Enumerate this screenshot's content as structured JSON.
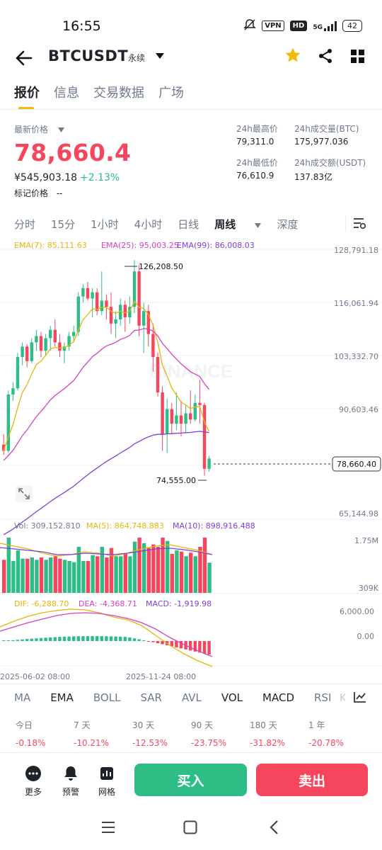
{
  "status": {
    "time": "16:55",
    "vpn": "VPN",
    "hd": "HD",
    "net": "5G",
    "battery": "42"
  },
  "header": {
    "pair": "BTCUSDT",
    "type": "永续"
  },
  "tabs": [
    "报价",
    "信息",
    "交易数据",
    "广场"
  ],
  "quote": {
    "latest_label": "最新价格",
    "price": "78,660.4",
    "cny": "¥545,903.18",
    "change": "+2.13%",
    "mark_label": "标记价格",
    "mark_value": "--",
    "high_label": "24h最高价",
    "high": "79,311.0",
    "low_label": "24h最低价",
    "low": "76,610.9",
    "vol_label": "24h成交量(BTC)",
    "vol": "175,977.036",
    "amt_label": "24h成交额(USDT)",
    "amt": "137.83亿"
  },
  "timeframes": [
    "分时",
    "15分",
    "1小时",
    "4小时",
    "日线",
    "周线",
    "深度"
  ],
  "ema": {
    "e7": "EMA(7): 85,111.63",
    "e25": "EMA(25): 95,003.25",
    "e99": "EMA(99): 86,008.03"
  },
  "axis": {
    "p1": "128,791.18",
    "p2": "116,061.94",
    "p3": "103,332.70",
    "p4": "90,603.46",
    "p5": "65,144.98",
    "current": "78,660.40",
    "high_mark": "126,208.50",
    "low_mark": "74,555.00",
    "vol_top": "1.75M",
    "vol_bot": "309K",
    "macd_top": "6,000.00",
    "macd_zero": "0.00",
    "date1": "2025-06-02 08:00",
    "date2": "2025-11-24 08:00"
  },
  "volume": {
    "vol": "Vol: 309,152.810",
    "ma5": "MA(5): 864,748.883",
    "ma10": "MA(10): 898,916.488"
  },
  "macd": {
    "dif": "DIF: -6,288.70",
    "dea": "DEA: -4,368.71",
    "macd": "MACD: -1,919.98"
  },
  "watermark": "BINANCE",
  "indicators": [
    "MA",
    "EMA",
    "BOLL",
    "SAR",
    "AVL",
    "VOL",
    "MACD",
    "RSI",
    "KDJ"
  ],
  "performance": [
    {
      "label": "今日",
      "value": "-0.18%"
    },
    {
      "label": "7 天",
      "value": "-10.21%"
    },
    {
      "label": "30 天",
      "value": "-12.53%"
    },
    {
      "label": "90 天",
      "value": "-23.75%"
    },
    {
      "label": "180 天",
      "value": "-31.82%"
    },
    {
      "label": "1 年",
      "value": "-20.78%"
    }
  ],
  "bottom": {
    "more": "更多",
    "alert": "预警",
    "grid": "网格",
    "buy": "买入",
    "sell": "卖出"
  },
  "colors": {
    "up": "#2ebd85",
    "down": "#f6465d",
    "accent": "#f0b90b",
    "ema7": "#e5b50a",
    "ema25": "#d63fc0",
    "ema99": "#7e3fd6"
  },
  "chart_data": {
    "type": "candlestick",
    "interval": "周线",
    "ylim": [
      65144.98,
      128791.18
    ],
    "yticks": [
      128791.18,
      116061.94,
      103332.7,
      90603.46,
      65144.98
    ],
    "candles": [
      [
        82000,
        84500,
        79500,
        80500
      ],
      [
        80500,
        95000,
        80000,
        94000
      ],
      [
        94000,
        97000,
        92500,
        95500
      ],
      [
        95500,
        104000,
        95000,
        103000
      ],
      [
        103000,
        106500,
        101000,
        105500
      ],
      [
        105500,
        106000,
        100500,
        102000
      ],
      [
        102000,
        107500,
        101500,
        106500
      ],
      [
        106500,
        109500,
        104500,
        108000
      ],
      [
        108000,
        109000,
        103000,
        104500
      ],
      [
        104500,
        108500,
        103500,
        107500
      ],
      [
        107500,
        110500,
        104500,
        109500
      ],
      [
        109500,
        112000,
        105500,
        106500
      ],
      [
        106500,
        108500,
        103000,
        104500
      ],
      [
        104500,
        106500,
        101500,
        105500
      ],
      [
        105500,
        109000,
        104500,
        108000
      ],
      [
        108000,
        110500,
        106500,
        109000
      ],
      [
        109000,
        118500,
        108000,
        117500
      ],
      [
        117500,
        120500,
        116000,
        119500
      ],
      [
        119500,
        121000,
        116500,
        117000
      ],
      [
        117000,
        119500,
        112500,
        118500
      ],
      [
        118500,
        119500,
        113000,
        114000
      ],
      [
        114000,
        123500,
        113000,
        116500
      ],
      [
        116500,
        118000,
        112000,
        115000
      ],
      [
        115000,
        118500,
        108500,
        111000
      ],
      [
        111000,
        114000,
        107500,
        112000
      ],
      [
        112000,
        117000,
        110500,
        115500
      ],
      [
        115500,
        116500,
        109000,
        112500
      ],
      [
        112500,
        117500,
        111000,
        115000
      ],
      [
        115000,
        126208.5,
        113500,
        123500
      ],
      [
        123500,
        125000,
        108000,
        110500
      ],
      [
        110500,
        116000,
        104000,
        114000
      ],
      [
        114000,
        115500,
        105500,
        108500
      ],
      [
        108500,
        111000,
        99500,
        103000
      ],
      [
        103000,
        104000,
        93500,
        94500
      ],
      [
        94500,
        96000,
        80500,
        84500
      ],
      [
        84500,
        93000,
        80000,
        90500
      ],
      [
        90500,
        92000,
        84500,
        87000
      ],
      [
        87000,
        94500,
        85500,
        89000
      ],
      [
        89000,
        92500,
        84000,
        87000
      ],
      [
        87000,
        91500,
        85000,
        89500
      ],
      [
        89500,
        95000,
        87000,
        88000
      ],
      [
        88000,
        94000,
        87500,
        92000
      ],
      [
        92000,
        97500,
        87000,
        91500
      ],
      [
        91500,
        92000,
        74555,
        76200
      ],
      [
        76200,
        79311,
        75500,
        78660.4
      ]
    ],
    "last_price": 78660.4,
    "marked_high": 126208.5,
    "marked_low": 74555.0
  }
}
